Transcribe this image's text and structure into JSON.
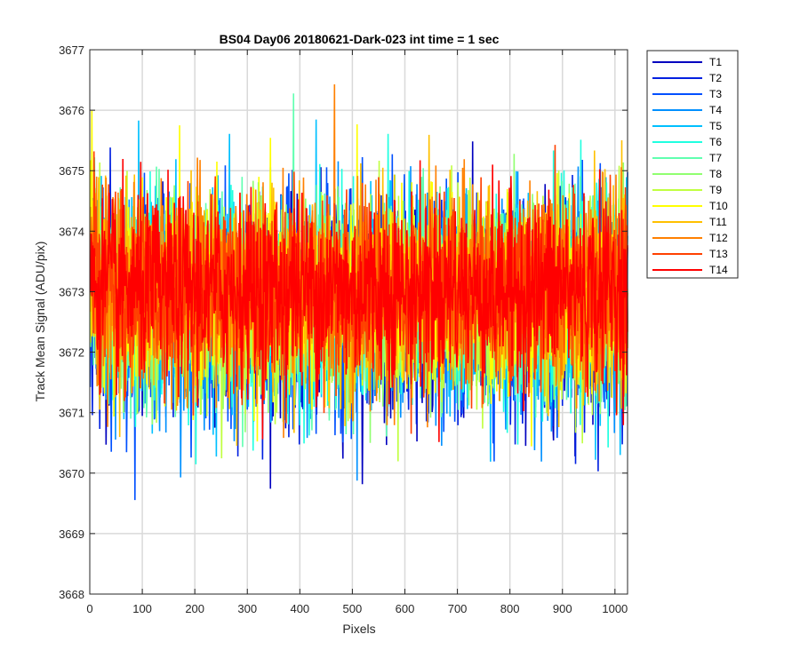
{
  "chart_data": {
    "type": "line",
    "title": "BS04 Day06 20180621-Dark-023 int time = 1 sec",
    "xlabel": "Pixels",
    "ylabel": "Track Mean Signal (ADU/pix)",
    "xlim": [
      0,
      1024
    ],
    "ylim": [
      3668,
      3677
    ],
    "xticks": [
      0,
      100,
      200,
      300,
      400,
      500,
      600,
      700,
      800,
      900,
      1000
    ],
    "yticks": [
      3668,
      3669,
      3670,
      3671,
      3672,
      3673,
      3674,
      3675,
      3676,
      3677
    ],
    "grid": true,
    "legend_position": "outside-top-right",
    "noise_mean": 3673,
    "approx_range": [
      3669,
      3676.7
    ],
    "series": [
      {
        "name": "T1",
        "color": "#0000bf",
        "mean": 3672.7,
        "std": 0.85
      },
      {
        "name": "T2",
        "color": "#0020e0",
        "mean": 3672.7,
        "std": 0.85
      },
      {
        "name": "T3",
        "color": "#0050ff",
        "mean": 3672.75,
        "std": 0.85
      },
      {
        "name": "T4",
        "color": "#0090ff",
        "mean": 3672.75,
        "std": 0.85
      },
      {
        "name": "T5",
        "color": "#00c0ff",
        "mean": 3672.8,
        "std": 0.85
      },
      {
        "name": "T6",
        "color": "#20ffe0",
        "mean": 3672.8,
        "std": 0.85
      },
      {
        "name": "T7",
        "color": "#60ffb0",
        "mean": 3672.85,
        "std": 0.8
      },
      {
        "name": "T8",
        "color": "#90ff70",
        "mean": 3672.85,
        "std": 0.8
      },
      {
        "name": "T9",
        "color": "#c0ff40",
        "mean": 3672.9,
        "std": 0.8
      },
      {
        "name": "T10",
        "color": "#ffff00",
        "mean": 3672.9,
        "std": 0.8
      },
      {
        "name": "T11",
        "color": "#ffc000",
        "mean": 3672.95,
        "std": 0.8
      },
      {
        "name": "T12",
        "color": "#ff8000",
        "mean": 3673.0,
        "std": 0.8
      },
      {
        "name": "T13",
        "color": "#ff4000",
        "mean": 3673.0,
        "std": 0.8
      },
      {
        "name": "T14",
        "color": "#ff0000",
        "mean": 3673.05,
        "std": 0.75
      }
    ]
  }
}
